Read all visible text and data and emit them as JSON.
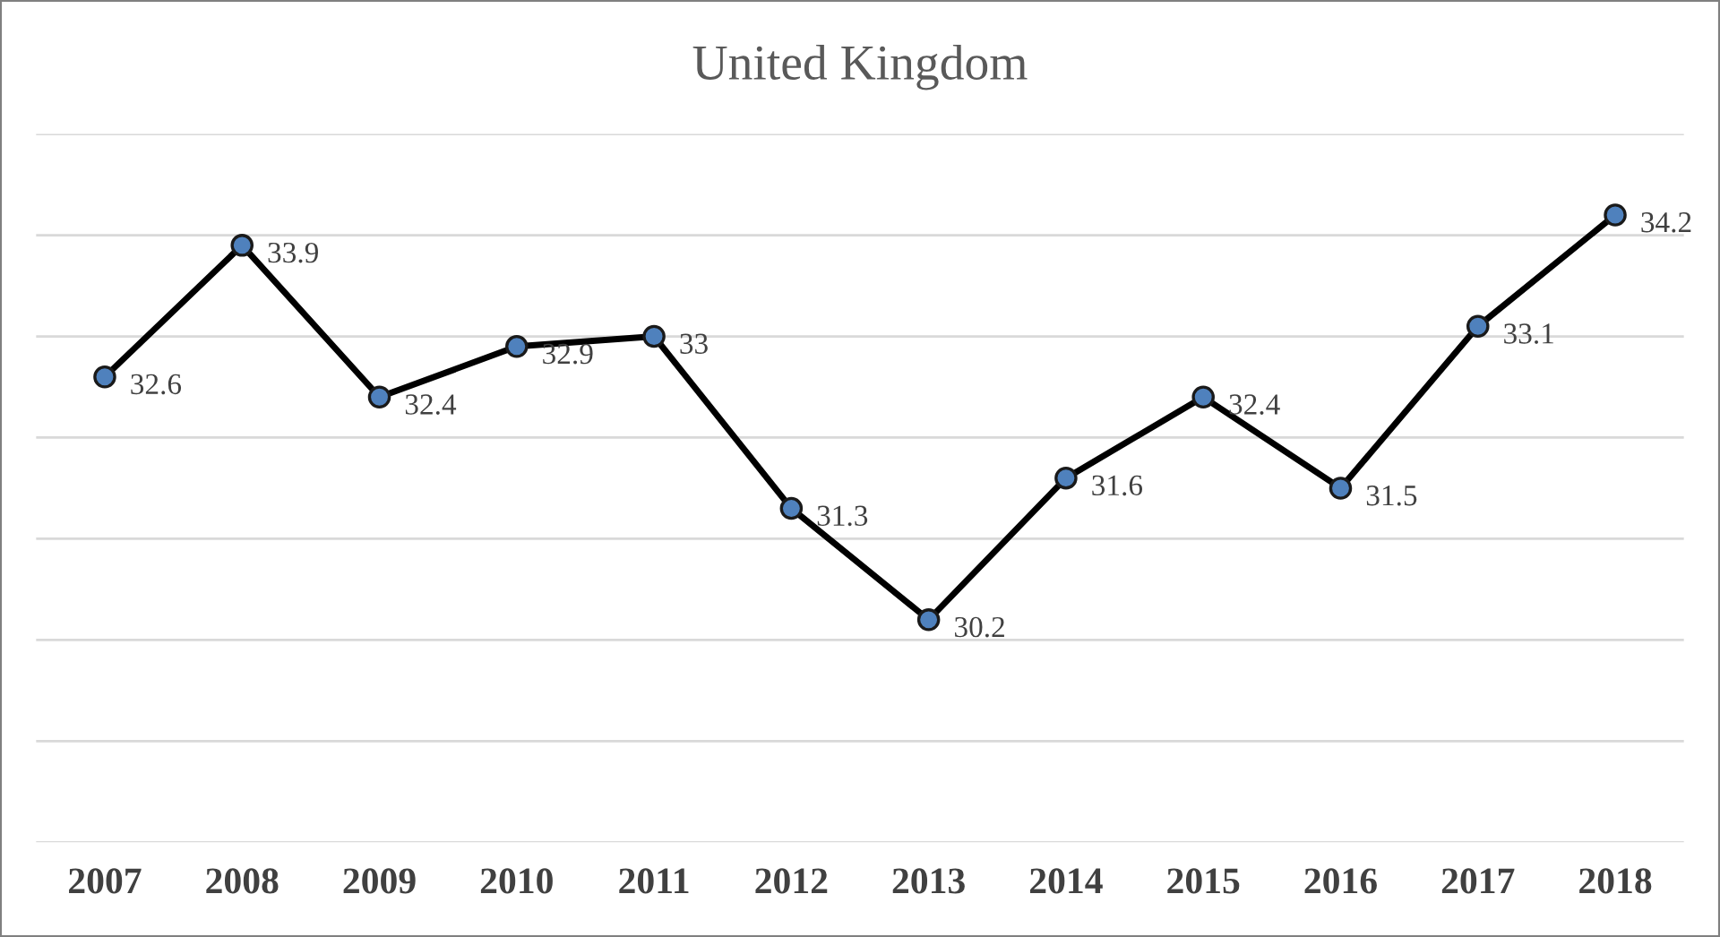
{
  "chart_data": {
    "type": "line",
    "title": "United Kingdom",
    "categories": [
      "2007",
      "2008",
      "2009",
      "2010",
      "2011",
      "2012",
      "2013",
      "2014",
      "2015",
      "2016",
      "2017",
      "2018"
    ],
    "series": [
      {
        "color": "#000000",
        "values": [
          32.6,
          33.9,
          32.4,
          32.9,
          33,
          31.3,
          30.2,
          31.6,
          32.4,
          31.5,
          33.1,
          34.2
        ]
      }
    ],
    "ylim": [
      28,
      35
    ],
    "yticks": [
      {
        "value": 28,
        "label": null
      },
      {
        "value": 29,
        "label": null
      },
      {
        "value": 30,
        "label": null
      },
      {
        "value": 31,
        "label": null
      },
      {
        "value": 32,
        "label": null
      },
      {
        "value": 33,
        "label": null
      },
      {
        "value": 34,
        "label": null
      },
      {
        "value": 35,
        "label": null
      }
    ],
    "tick_labels": "x",
    "grid": "y",
    "marker": "circle",
    "line_style": "solid",
    "data_labels": true,
    "legend": false
  }
}
